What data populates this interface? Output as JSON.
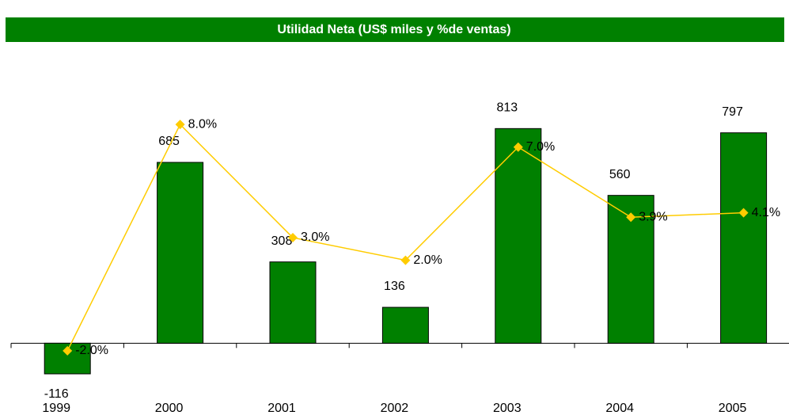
{
  "chart_data": {
    "type": "bar",
    "title": "Utilidad Neta (US$ miles y %de ventas)",
    "categories": [
      "1999",
      "2000",
      "2001",
      "2002",
      "2003",
      "2004",
      "2005"
    ],
    "ylim": [
      -200,
      1000
    ],
    "y2lim": [
      -4,
      10
    ],
    "series": [
      {
        "type": "bar",
        "color": "#008000",
        "values": [
          -116,
          685,
          308,
          136,
          813,
          560,
          797
        ]
      },
      {
        "type": "line",
        "axis": "y2",
        "color": "#ffcc00",
        "values": [
          -2.0,
          8.0,
          3.0,
          2.0,
          7.0,
          3.9,
          4.1
        ],
        "value_labels": [
          "-2.0%",
          "8.0%",
          "3.0%",
          "2.0%",
          "7.0%",
          "3.9%",
          "4.1%"
        ]
      }
    ]
  }
}
